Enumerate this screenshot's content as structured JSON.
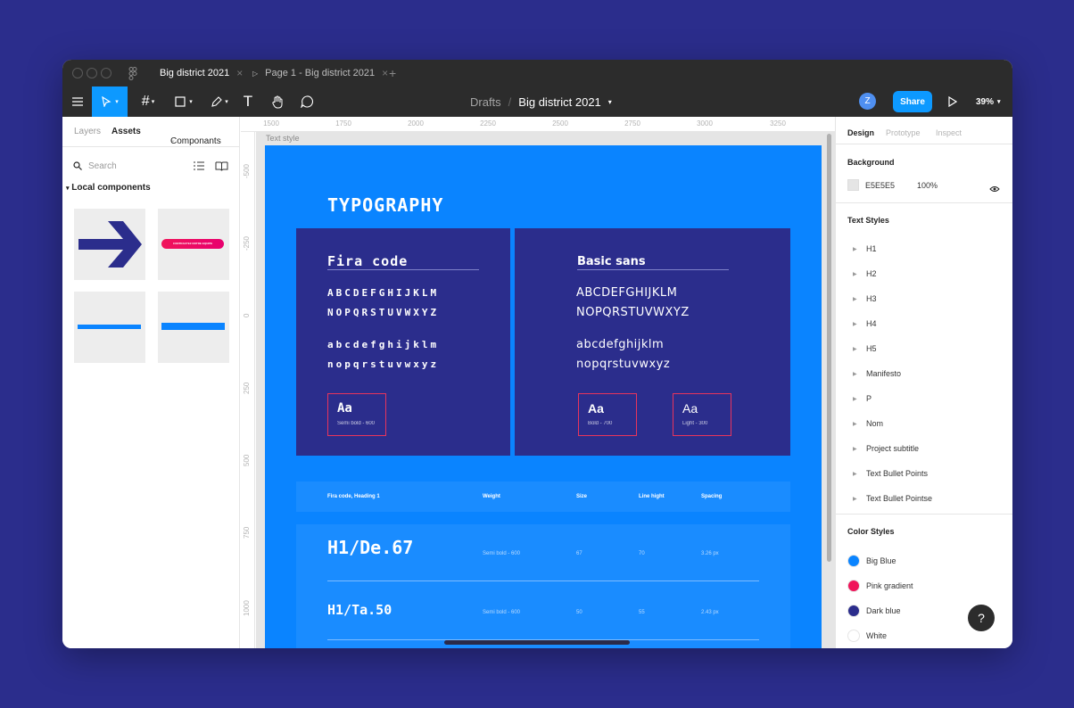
{
  "tabs": [
    {
      "label": "Big district 2021",
      "close": "×"
    },
    {
      "label": "Page 1 - Big district 2021",
      "close": "×"
    }
  ],
  "new_tab": "+",
  "breadcrumb": {
    "drafts": "Drafts",
    "sep": "/",
    "file": "Big district 2021"
  },
  "avatar": "Z",
  "share_label": "Share",
  "zoom": "39%",
  "left_panel": {
    "tabs": [
      "Layers",
      "Assets"
    ],
    "componants": "Componants",
    "search_placeholder": "Search",
    "local_components": "Local components",
    "pill_text": "CONTRACTEZ NOTRE EQUIPE"
  },
  "ruler_top": [
    "1500",
    "1750",
    "2000",
    "2250",
    "2500",
    "2750",
    "3000",
    "3250"
  ],
  "ruler_left": [
    "-500",
    "-250",
    "0",
    "250",
    "500",
    "750",
    "1000"
  ],
  "canvas": {
    "frame_label": "Text style",
    "title": "TYPOGRAPHY",
    "fira": {
      "title": "Fira code",
      "upper1": "ABCDEFGHIJKLM",
      "upper2": "NOPQRSTUVWXYZ",
      "lower1": "abcdefghijklm",
      "lower2": "nopqrstuvwxyz",
      "sample": {
        "aa": "Aa",
        "sub": "Semi bold - 600"
      }
    },
    "basic": {
      "title": "Basic sans",
      "upper1": "ABCDEFGHIJKLM",
      "upper2": "NOPQRSTUVWXYZ",
      "lower1": "abcdefghijklm",
      "lower2": "nopqrstuvwxyz",
      "samples": [
        {
          "aa": "Aa",
          "sub": "Bold - 700"
        },
        {
          "aa": "Aa",
          "sub": "Light - 300"
        }
      ]
    },
    "table": {
      "headers": [
        "Fira code, Heading 1",
        "Weight",
        "Size",
        "Line hight",
        "Spacing"
      ],
      "rows": [
        {
          "name": "H1/De.67",
          "weight": "Semi bold - 600",
          "size": "67",
          "line": "70",
          "spacing": "3.26 px"
        },
        {
          "name": "H1/Ta.50",
          "weight": "Semi bold - 600",
          "size": "50",
          "line": "55",
          "spacing": "2.43 px"
        }
      ]
    }
  },
  "right_panel": {
    "tabs": [
      "Design",
      "Prototype",
      "Inspect"
    ],
    "background": {
      "title": "Background",
      "hex": "E5E5E5",
      "opacity": "100%",
      "swatch": "#e5e5e5"
    },
    "text_styles_title": "Text Styles",
    "text_styles": [
      "H1",
      "H2",
      "H3",
      "H4",
      "H5",
      "Manifesto",
      "P",
      "Nom",
      "Project subtitle",
      "Text Bullet Points",
      "Text Bullet Pointse"
    ],
    "color_styles_title": "Color Styles",
    "color_styles": [
      {
        "name": "Big Blue",
        "color": "#0a84ff"
      },
      {
        "name": "Pink gradient",
        "color": "#f0145a"
      },
      {
        "name": "Dark blue",
        "color": "#2b2d8c"
      },
      {
        "name": "White",
        "color": "#ffffff"
      }
    ]
  },
  "help": "?",
  "colors": {
    "accent": "#0d99ff",
    "frame": "#0a84ff",
    "dark_blue": "#2b2d8c",
    "pink": "#e8345c"
  }
}
